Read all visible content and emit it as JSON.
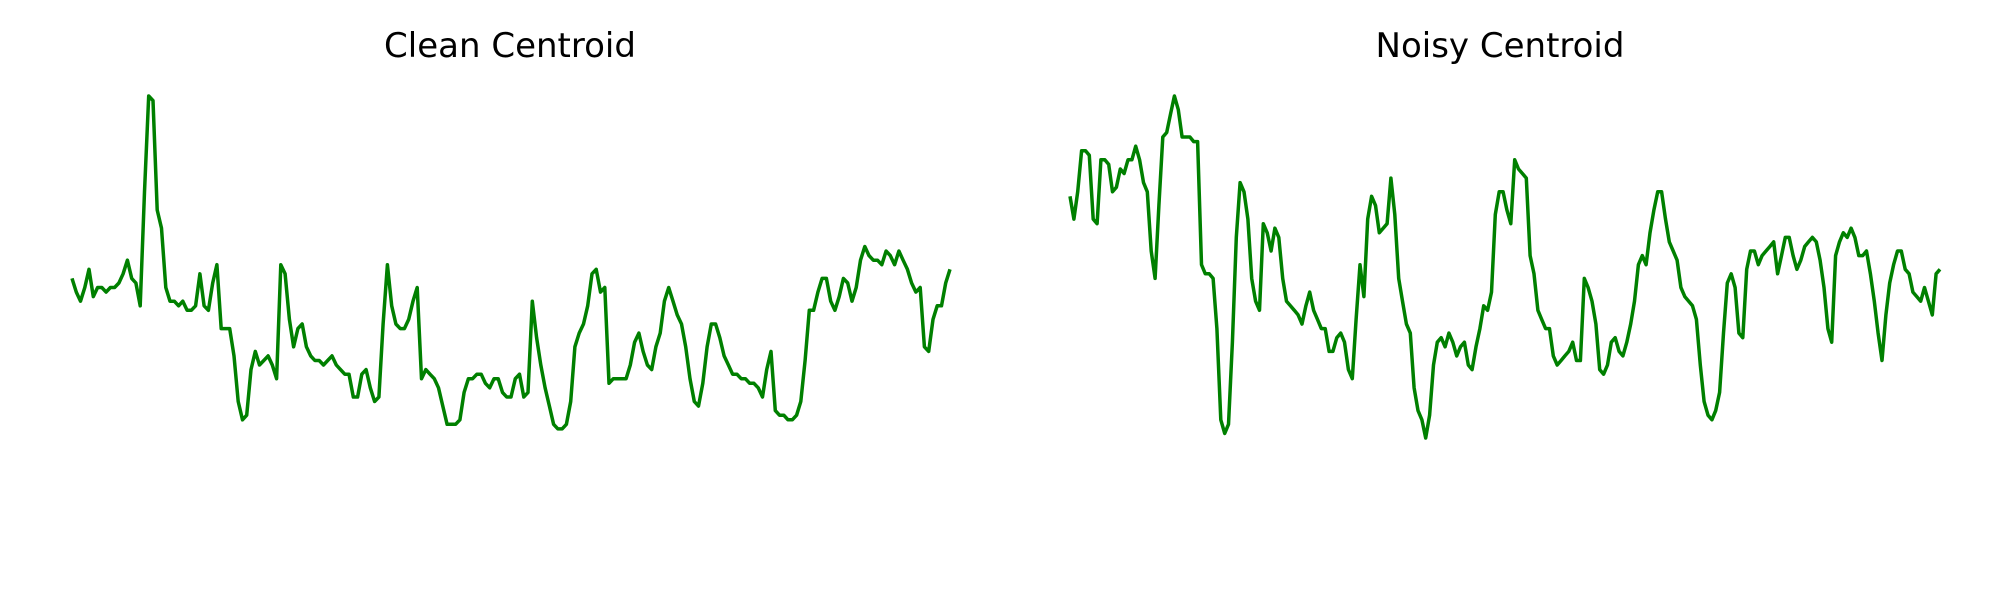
{
  "chart_data": [
    {
      "type": "line",
      "title": "Clean Centroid",
      "xlabel": "",
      "ylabel": "",
      "axes_visible": false,
      "color": "#008000",
      "ylim": [
        0,
        1
      ],
      "series": [
        {
          "values": [
            0.6,
            0.57,
            0.55,
            0.58,
            0.62,
            0.56,
            0.58,
            0.58,
            0.57,
            0.58,
            0.58,
            0.59,
            0.61,
            0.64,
            0.6,
            0.59,
            0.54,
            0.79,
            1.0,
            0.99,
            0.75,
            0.71,
            0.58,
            0.55,
            0.55,
            0.54,
            0.55,
            0.53,
            0.53,
            0.54,
            0.61,
            0.54,
            0.53,
            0.59,
            0.63,
            0.49,
            0.49,
            0.49,
            0.43,
            0.33,
            0.29,
            0.3,
            0.4,
            0.44,
            0.41,
            0.42,
            0.43,
            0.41,
            0.38,
            0.63,
            0.61,
            0.51,
            0.45,
            0.49,
            0.5,
            0.45,
            0.43,
            0.42,
            0.42,
            0.41,
            0.42,
            0.43,
            0.41,
            0.4,
            0.39,
            0.39,
            0.34,
            0.34,
            0.39,
            0.4,
            0.36,
            0.33,
            0.34,
            0.5,
            0.63,
            0.54,
            0.5,
            0.49,
            0.49,
            0.51,
            0.55,
            0.58,
            0.38,
            0.4,
            0.39,
            0.38,
            0.36,
            0.32,
            0.28,
            0.28,
            0.28,
            0.29,
            0.35,
            0.38,
            0.38,
            0.39,
            0.39,
            0.37,
            0.36,
            0.38,
            0.38,
            0.35,
            0.34,
            0.34,
            0.38,
            0.39,
            0.34,
            0.35,
            0.55,
            0.47,
            0.41,
            0.36,
            0.32,
            0.28,
            0.27,
            0.27,
            0.28,
            0.33,
            0.45,
            0.48,
            0.5,
            0.54,
            0.61,
            0.62,
            0.57,
            0.58,
            0.37,
            0.38,
            0.38,
            0.38,
            0.38,
            0.41,
            0.46,
            0.48,
            0.44,
            0.41,
            0.4,
            0.45,
            0.48,
            0.55,
            0.58,
            0.55,
            0.52,
            0.5,
            0.45,
            0.38,
            0.33,
            0.32,
            0.37,
            0.45,
            0.5,
            0.5,
            0.47,
            0.43,
            0.41,
            0.39,
            0.39,
            0.38,
            0.38,
            0.37,
            0.37,
            0.36,
            0.34,
            0.4,
            0.44,
            0.31,
            0.3,
            0.3,
            0.29,
            0.29,
            0.3,
            0.33,
            0.42,
            0.53,
            0.53,
            0.57,
            0.6,
            0.6,
            0.55,
            0.53,
            0.56,
            0.6,
            0.59,
            0.55,
            0.58,
            0.64,
            0.67,
            0.65,
            0.64,
            0.64,
            0.63,
            0.66,
            0.65,
            0.63,
            0.66,
            0.64,
            0.62,
            0.59,
            0.57,
            0.58,
            0.45,
            0.44,
            0.51,
            0.54,
            0.54,
            0.59,
            0.62
          ]
        }
      ]
    },
    {
      "type": "line",
      "title": "Noisy Centroid",
      "xlabel": "",
      "ylabel": "",
      "axes_visible": false,
      "color": "#008000",
      "ylim": [
        0,
        1
      ],
      "series": [
        {
          "values": [
            0.78,
            0.73,
            0.79,
            0.88,
            0.88,
            0.87,
            0.73,
            0.72,
            0.86,
            0.86,
            0.85,
            0.79,
            0.8,
            0.84,
            0.83,
            0.86,
            0.86,
            0.89,
            0.86,
            0.81,
            0.79,
            0.66,
            0.6,
            0.76,
            0.91,
            0.92,
            0.96,
            1.0,
            0.97,
            0.91,
            0.91,
            0.91,
            0.9,
            0.9,
            0.63,
            0.61,
            0.61,
            0.6,
            0.49,
            0.29,
            0.26,
            0.28,
            0.46,
            0.69,
            0.81,
            0.79,
            0.73,
            0.6,
            0.55,
            0.53,
            0.72,
            0.7,
            0.66,
            0.71,
            0.69,
            0.6,
            0.55,
            0.54,
            0.53,
            0.52,
            0.5,
            0.54,
            0.57,
            0.53,
            0.51,
            0.49,
            0.49,
            0.44,
            0.44,
            0.47,
            0.48,
            0.46,
            0.4,
            0.38,
            0.51,
            0.63,
            0.56,
            0.73,
            0.78,
            0.76,
            0.7,
            0.71,
            0.72,
            0.82,
            0.74,
            0.6,
            0.55,
            0.5,
            0.48,
            0.36,
            0.31,
            0.29,
            0.25,
            0.3,
            0.41,
            0.46,
            0.47,
            0.45,
            0.48,
            0.46,
            0.43,
            0.45,
            0.46,
            0.41,
            0.4,
            0.45,
            0.49,
            0.54,
            0.53,
            0.57,
            0.74,
            0.79,
            0.79,
            0.75,
            0.72,
            0.86,
            0.84,
            0.83,
            0.82,
            0.65,
            0.61,
            0.53,
            0.51,
            0.49,
            0.49,
            0.43,
            0.41,
            0.42,
            0.43,
            0.44,
            0.46,
            0.42,
            0.42,
            0.6,
            0.58,
            0.55,
            0.5,
            0.4,
            0.39,
            0.41,
            0.46,
            0.47,
            0.44,
            0.43,
            0.46,
            0.5,
            0.55,
            0.63,
            0.65,
            0.63,
            0.7,
            0.75,
            0.79,
            0.79,
            0.73,
            0.68,
            0.66,
            0.64,
            0.58,
            0.56,
            0.55,
            0.54,
            0.51,
            0.41,
            0.33,
            0.3,
            0.29,
            0.31,
            0.35,
            0.48,
            0.59,
            0.61,
            0.58,
            0.48,
            0.47,
            0.62,
            0.66,
            0.66,
            0.63,
            0.65,
            0.66,
            0.67,
            0.68,
            0.61,
            0.65,
            0.69,
            0.69,
            0.65,
            0.62,
            0.64,
            0.67,
            0.68,
            0.69,
            0.68,
            0.64,
            0.58,
            0.49,
            0.46,
            0.65,
            0.68,
            0.7,
            0.69,
            0.71,
            0.69,
            0.65,
            0.65,
            0.66,
            0.61,
            0.55,
            0.48,
            0.42,
            0.52,
            0.59,
            0.63,
            0.66,
            0.66,
            0.62,
            0.61,
            0.57,
            0.56,
            0.55,
            0.58,
            0.55,
            0.52,
            0.61,
            0.62
          ]
        }
      ]
    }
  ]
}
